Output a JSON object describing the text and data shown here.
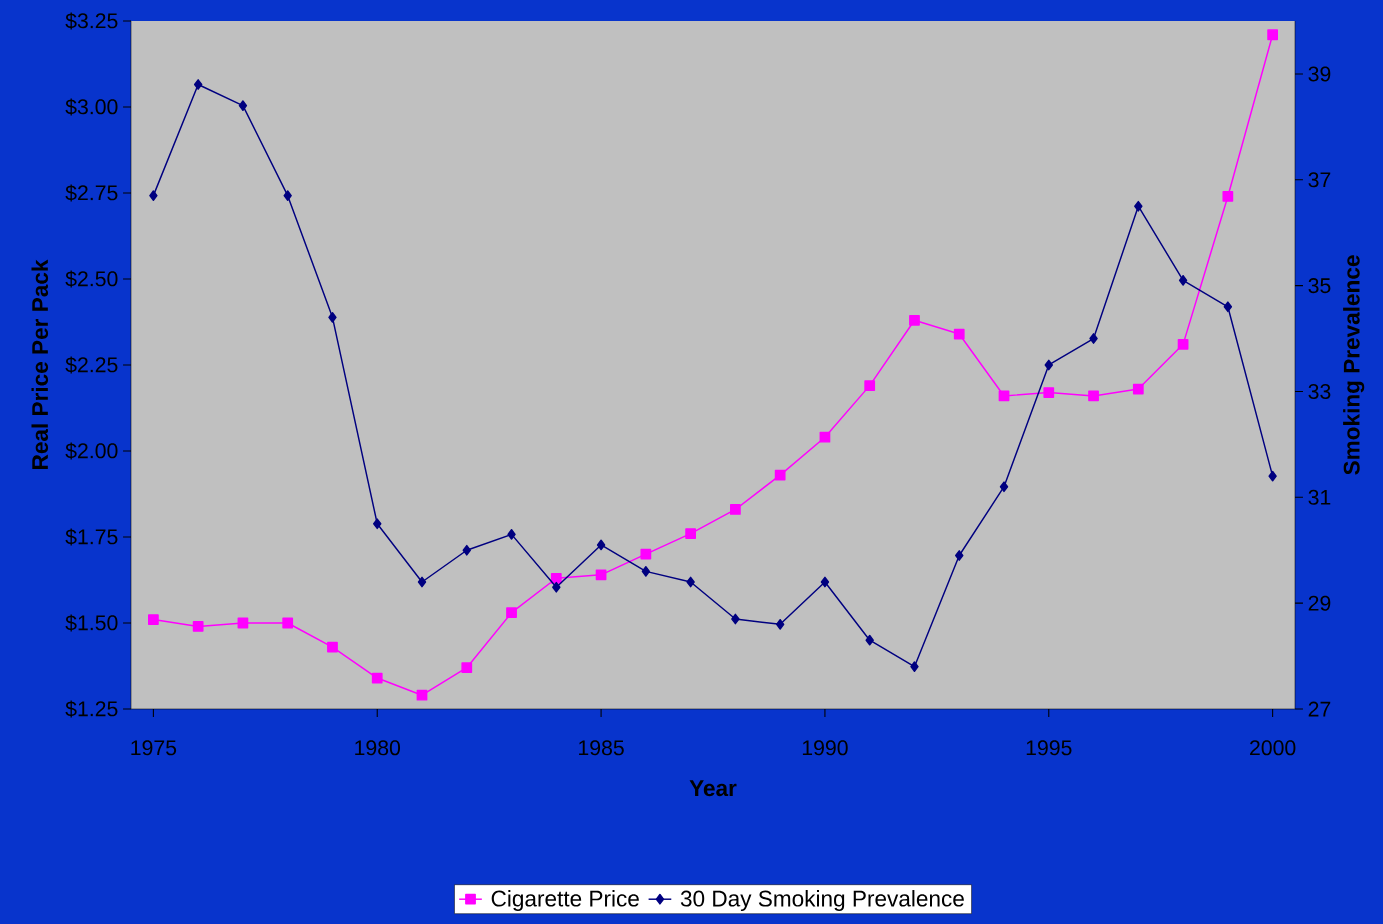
{
  "chart_data": {
    "type": "line",
    "xlabel": "Year",
    "ylabel": "Real Price Per Pack",
    "y2label": "Smoking Prevalence",
    "x": [
      1975,
      1976,
      1977,
      1978,
      1979,
      1980,
      1981,
      1982,
      1983,
      1984,
      1985,
      1986,
      1987,
      1988,
      1989,
      1990,
      1991,
      1992,
      1993,
      1994,
      1995,
      1996,
      1997,
      1998,
      1999,
      2000
    ],
    "series": [
      {
        "name": "Cigarette Price",
        "color": "#ff00ff",
        "marker": "square",
        "values": [
          1.51,
          1.49,
          1.5,
          1.5,
          1.43,
          1.34,
          1.29,
          1.37,
          1.53,
          1.63,
          1.64,
          1.7,
          1.76,
          1.83,
          1.93,
          2.04,
          2.19,
          2.38,
          2.34,
          2.16,
          2.17,
          2.16,
          2.18,
          2.31,
          2.74,
          3.21
        ]
      },
      {
        "name": "30 Day Smoking Prevalence",
        "color": "#000080",
        "marker": "diamond",
        "axis": "y2",
        "values": [
          36.7,
          38.8,
          38.4,
          36.7,
          34.4,
          30.5,
          29.4,
          30.0,
          30.3,
          29.3,
          30.1,
          29.6,
          29.4,
          28.7,
          28.6,
          29.4,
          28.3,
          27.8,
          29.9,
          31.2,
          33.5,
          34.0,
          36.5,
          35.1,
          34.6,
          31.4
        ]
      }
    ],
    "xlim": [
      1974.5,
      2000.5
    ],
    "xticks": [
      1975,
      1980,
      1985,
      1990,
      1995,
      2000
    ],
    "ylim": [
      1.25,
      3.25
    ],
    "yticks": [
      {
        "value": 1.25,
        "label": "$1.25"
      },
      {
        "value": 1.5,
        "label": "$1.50"
      },
      {
        "value": 1.75,
        "label": "$1.75"
      },
      {
        "value": 2.0,
        "label": "$2.00"
      },
      {
        "value": 2.25,
        "label": "$2.25"
      },
      {
        "value": 2.5,
        "label": "$2.50"
      },
      {
        "value": 2.75,
        "label": "$2.75"
      },
      {
        "value": 3.0,
        "label": "$3.00"
      },
      {
        "value": 3.25,
        "label": "$3.25"
      }
    ],
    "y2lim": [
      27,
      40
    ],
    "y2ticks": [
      27,
      29,
      31,
      33,
      35,
      37,
      39
    ],
    "grid": false,
    "legend": "bottom"
  }
}
